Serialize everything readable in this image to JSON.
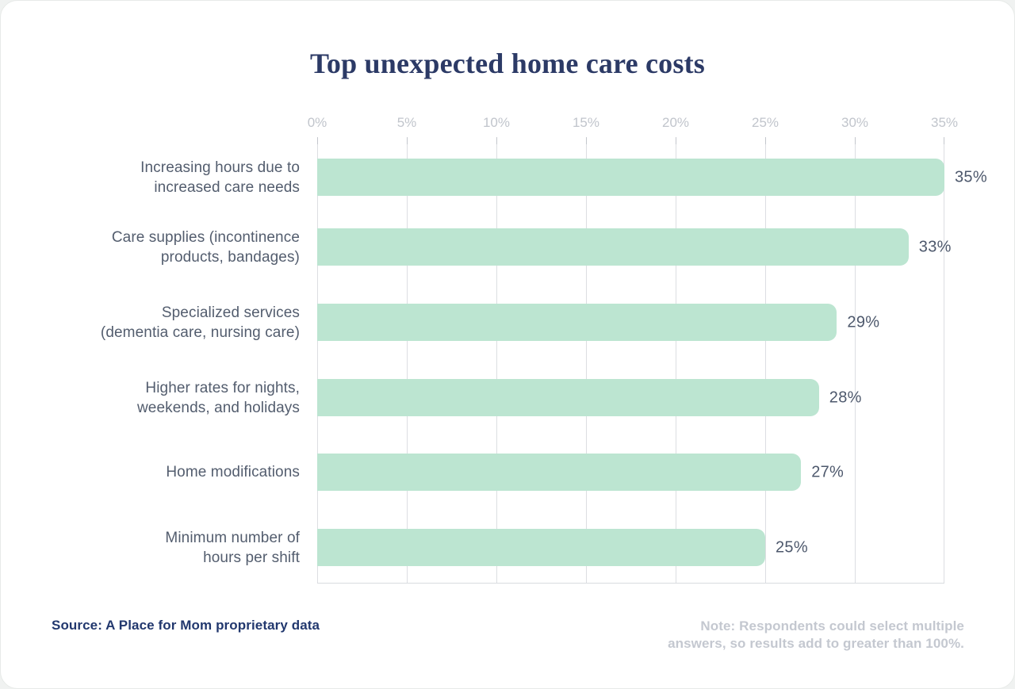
{
  "title": "Top unexpected home care costs",
  "source": {
    "text": "Source: A Place for Mom proprietary data"
  },
  "note": {
    "line1": "Note: Respondents could select multiple",
    "line2": "answers, so results add to greater than 100%."
  },
  "chart_data": {
    "type": "bar",
    "orientation": "horizontal",
    "title": "Top unexpected home care costs",
    "categories": [
      "Increasing hours due to increased care needs",
      "Care supplies (incontinence products, bandages)",
      "Specialized services (dementia care, nursing care)",
      "Higher rates for nights, weekends, and holidays",
      "Home modifications",
      "Minimum number of hours per shift"
    ],
    "values": [
      35,
      33,
      29,
      28,
      27,
      25
    ],
    "value_labels": [
      "35%",
      "33%",
      "29%",
      "28%",
      "27%",
      "25%"
    ],
    "rows": [
      {
        "lines": [
          "Increasing hours due to",
          "increased care needs"
        ]
      },
      {
        "lines": [
          "Care supplies (incontinence",
          "products, bandages)"
        ]
      },
      {
        "lines": [
          "Specialized services",
          "(dementia care, nursing care)"
        ]
      },
      {
        "lines": [
          "Higher rates for nights,",
          "weekends, and holidays"
        ]
      },
      {
        "lines": [
          "Home modifications"
        ]
      },
      {
        "lines": [
          "Minimum number of",
          "hours per shift"
        ]
      }
    ],
    "x_ticks": [
      "0%",
      "5%",
      "10%",
      "15%",
      "20%",
      "25%",
      "30%",
      "35%"
    ],
    "xlim": [
      0,
      35
    ],
    "grid": true,
    "legend": false,
    "xlabel": "",
    "ylabel": "",
    "colors": {
      "bar": "#bce5d1",
      "gridline": "#dcdee2",
      "axis_text": "#c1c5cc",
      "category_text": "#535d6e",
      "value_text": "#4d586c",
      "title_text": "#2c3a66",
      "source_text": "#22386e",
      "note_text": "#c4c8d0"
    }
  }
}
